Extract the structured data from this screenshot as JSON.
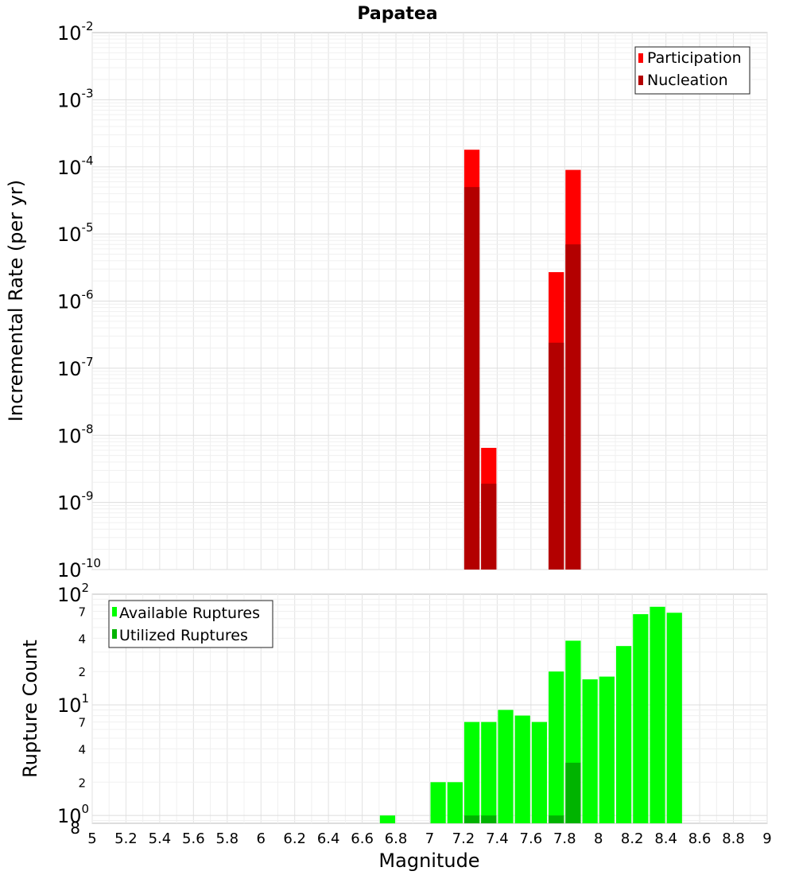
{
  "chart_data": [
    {
      "type": "bar",
      "title": "Papatea",
      "xlabel": "",
      "ylabel": "Incremental Rate (per yr)",
      "yscale": "log",
      "ylim": [
        1e-10,
        0.01
      ],
      "xlim": [
        5,
        9
      ],
      "grid": true,
      "legend_position": "top-right",
      "bar_width": 0.1,
      "y_tick_labels": [
        {
          "base": "10",
          "exp": "-10",
          "value": 1e-10
        },
        {
          "base": "10",
          "exp": "-9",
          "value": 1e-09
        },
        {
          "base": "10",
          "exp": "-8",
          "value": 1e-08
        },
        {
          "base": "10",
          "exp": "-7",
          "value": 1e-07
        },
        {
          "base": "10",
          "exp": "-6",
          "value": 1e-06
        },
        {
          "base": "10",
          "exp": "-5",
          "value": 1e-05
        },
        {
          "base": "10",
          "exp": "-4",
          "value": 0.0001
        },
        {
          "base": "10",
          "exp": "-3",
          "value": 0.001
        },
        {
          "base": "10",
          "exp": "-2",
          "value": 0.01
        }
      ],
      "series": [
        {
          "name": "Participation",
          "color": "#ff0000",
          "points": [
            [
              7.25,
              0.00018
            ],
            [
              7.35,
              6.5e-09
            ],
            [
              7.75,
              2.7e-06
            ],
            [
              7.85,
              9e-05
            ]
          ]
        },
        {
          "name": "Nucleation",
          "color": "#b30000",
          "points": [
            [
              7.25,
              5e-05
            ],
            [
              7.35,
              1.9e-09
            ],
            [
              7.75,
              2.4e-07
            ],
            [
              7.85,
              7e-06
            ]
          ]
        }
      ]
    },
    {
      "type": "bar",
      "title": "",
      "xlabel": "Magnitude",
      "ylabel": "Rupture Count",
      "yscale": "log",
      "ylim": [
        0.85,
        100
      ],
      "xlim": [
        5,
        9
      ],
      "grid": true,
      "legend_position": "top-left",
      "bar_width": 0.1,
      "x_ticks": [
        "5",
        "5.2",
        "5.4",
        "5.6",
        "5.8",
        "6",
        "6.2",
        "6.4",
        "6.6",
        "6.8",
        "7",
        "7.2",
        "7.4",
        "7.6",
        "7.8",
        "8",
        "8.2",
        "8.4",
        "8.6",
        "8.8",
        "9"
      ],
      "y_major_ticks": [
        {
          "base": "10",
          "exp": "0",
          "value": 1
        },
        {
          "base": "10",
          "exp": "1",
          "value": 10
        },
        {
          "base": "10",
          "exp": "2",
          "value": 100
        }
      ],
      "y_minor_ticks": [
        {
          "label": "8",
          "value": 0.8
        },
        {
          "label": "2",
          "value": 2
        },
        {
          "label": "4",
          "value": 4
        },
        {
          "label": "7",
          "value": 7
        },
        {
          "label": "2",
          "value": 20
        },
        {
          "label": "4",
          "value": 40
        },
        {
          "label": "7",
          "value": 70
        }
      ],
      "series": [
        {
          "name": "Available Ruptures",
          "color": "#00ff00",
          "points": [
            [
              6.75,
              1
            ],
            [
              7.05,
              2
            ],
            [
              7.15,
              2
            ],
            [
              7.25,
              7
            ],
            [
              7.35,
              7
            ],
            [
              7.45,
              9
            ],
            [
              7.55,
              8
            ],
            [
              7.65,
              7
            ],
            [
              7.75,
              20
            ],
            [
              7.85,
              38
            ],
            [
              7.95,
              17
            ],
            [
              8.05,
              18
            ],
            [
              8.15,
              34
            ],
            [
              8.25,
              66
            ],
            [
              8.35,
              77
            ],
            [
              8.45,
              68
            ]
          ]
        },
        {
          "name": "Utilized Ruptures",
          "color": "#00b300",
          "points": [
            [
              7.25,
              1
            ],
            [
              7.35,
              1
            ],
            [
              7.75,
              1
            ],
            [
              7.85,
              3
            ]
          ]
        }
      ]
    }
  ]
}
